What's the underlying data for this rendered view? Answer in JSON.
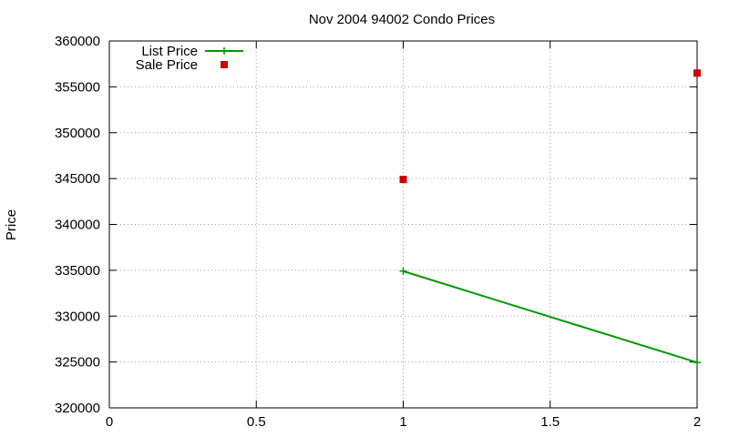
{
  "chart_data": {
    "type": "line",
    "title": "Nov 2004 94002 Condo Prices",
    "xlabel": "",
    "ylabel": "Price",
    "xlim": [
      0,
      2
    ],
    "ylim": [
      320000,
      360000
    ],
    "x_ticks": [
      0,
      0.5,
      1,
      1.5,
      2
    ],
    "y_ticks": [
      320000,
      325000,
      330000,
      335000,
      340000,
      345000,
      350000,
      355000,
      360000
    ],
    "grid": true,
    "legend_position": "top-left",
    "series": [
      {
        "name": "List Price",
        "style": "lines-points",
        "marker": "plus",
        "color": "#009900",
        "x": [
          1,
          2
        ],
        "y": [
          334900,
          324950
        ]
      },
      {
        "name": "Sale Price",
        "style": "points",
        "marker": "square",
        "color": "#cc0000",
        "x": [
          1,
          2
        ],
        "y": [
          344900,
          356500
        ]
      }
    ]
  }
}
